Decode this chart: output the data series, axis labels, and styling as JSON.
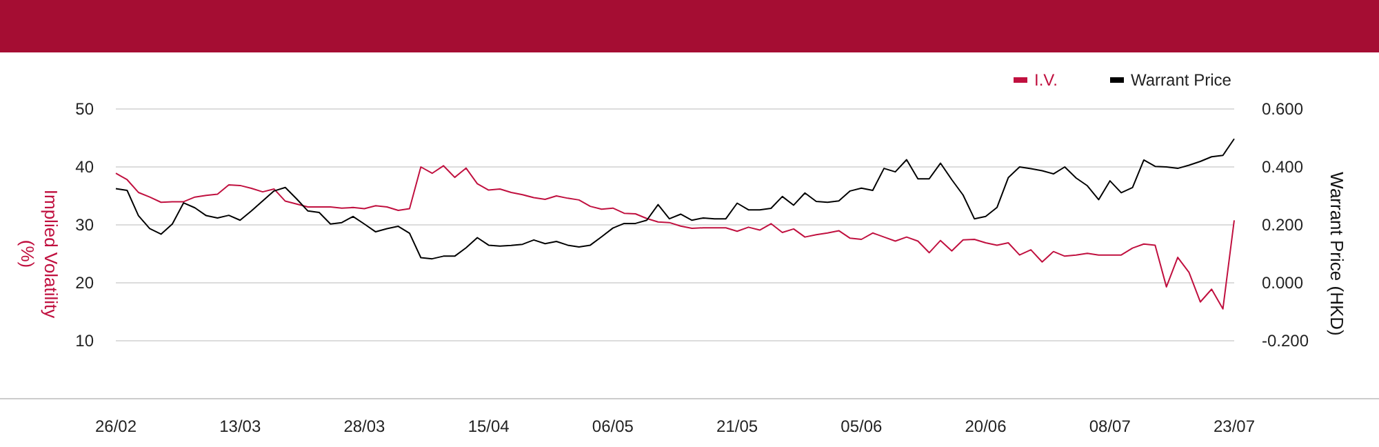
{
  "chart_data": {
    "type": "line",
    "xlabel": null,
    "ylabel": "Implied Volatility (%)",
    "y2label": "Warrant Price (HKD)",
    "categories": [
      "26/02",
      null,
      null,
      null,
      null,
      null,
      null,
      null,
      null,
      null,
      null,
      "13/03",
      null,
      null,
      null,
      null,
      null,
      null,
      null,
      null,
      null,
      null,
      "28/03",
      null,
      null,
      null,
      null,
      null,
      null,
      null,
      null,
      null,
      null,
      "15/04",
      null,
      null,
      null,
      null,
      null,
      null,
      null,
      null,
      null,
      null,
      "06/05",
      null,
      null,
      null,
      null,
      null,
      null,
      null,
      null,
      null,
      null,
      "21/05",
      null,
      null,
      null,
      null,
      null,
      null,
      null,
      null,
      null,
      null,
      "05/06",
      null,
      null,
      null,
      null,
      null,
      null,
      null,
      null,
      null,
      null,
      "20/06",
      null,
      null,
      null,
      null,
      null,
      null,
      null,
      null,
      null,
      null,
      "08/07",
      null,
      null,
      null,
      null,
      null,
      null,
      null,
      null,
      null,
      null,
      "23/07"
    ],
    "ylim": [
      0,
      50
    ],
    "yticks": [
      10,
      20,
      30,
      40,
      50
    ],
    "y2lim": [
      -0.4,
      0.6
    ],
    "y2ticks": [
      {
        "value": -0.2,
        "label": "-0.200"
      },
      {
        "value": 0,
        "label": "0.000"
      },
      {
        "value": 0.2,
        "label": "0.200"
      },
      {
        "value": 0.4,
        "label": "0.400"
      },
      {
        "value": 0.6,
        "label": "0.600"
      }
    ],
    "grid": "y",
    "legend": "top right",
    "marker": "none",
    "line_style": "solid",
    "series": [
      {
        "name": "I.V.",
        "color": "#c0103f",
        "values": [
          38.9,
          37.8,
          35.6,
          34.8,
          33.9,
          34.0,
          34.0,
          34.8,
          35.1,
          35.3,
          36.9,
          36.8,
          36.3,
          35.7,
          36.2,
          34.1,
          33.6,
          33.1,
          33.1,
          33.1,
          32.9,
          33.0,
          32.8,
          33.3,
          33.1,
          32.5,
          32.8,
          40.0,
          38.9,
          40.2,
          38.2,
          39.8,
          37.1,
          36.0,
          36.2,
          35.6,
          35.2,
          34.7,
          34.4,
          35.0,
          34.6,
          34.3,
          33.2,
          32.7,
          32.9,
          32.0,
          31.9,
          31.1,
          30.5,
          30.4,
          29.8,
          29.4,
          29.5,
          29.5,
          29.5,
          28.9,
          29.6,
          29.1,
          30.2,
          28.7,
          29.3,
          27.9,
          28.3,
          28.6,
          29.0,
          27.7,
          27.5,
          28.6,
          27.9,
          27.2,
          27.9,
          27.2,
          25.2,
          27.3,
          25.5,
          27.4,
          27.5,
          26.9,
          26.5,
          26.9,
          24.8,
          25.7,
          23.6,
          25.4,
          24.6,
          24.8,
          25.1,
          24.8,
          24.8,
          24.8,
          26.0,
          26.7,
          26.5,
          19.3,
          24.4,
          21.8,
          16.7,
          18.9,
          15.5,
          30.8
        ]
      },
      {
        "name": "Warrant Price",
        "color": "#000000",
        "axis": "y2",
        "values": [
          0.325,
          0.319,
          0.232,
          0.187,
          0.168,
          0.203,
          0.276,
          0.259,
          0.232,
          0.224,
          0.233,
          0.216,
          0.248,
          0.283,
          0.317,
          0.329,
          0.29,
          0.248,
          0.243,
          0.203,
          0.208,
          0.229,
          0.203,
          0.176,
          0.187,
          0.195,
          0.171,
          0.087,
          0.083,
          0.092,
          0.092,
          0.121,
          0.156,
          0.13,
          0.127,
          0.129,
          0.133,
          0.148,
          0.135,
          0.143,
          0.13,
          0.124,
          0.13,
          0.159,
          0.189,
          0.205,
          0.205,
          0.216,
          0.27,
          0.221,
          0.237,
          0.216,
          0.224,
          0.221,
          0.221,
          0.275,
          0.252,
          0.252,
          0.257,
          0.298,
          0.268,
          0.31,
          0.281,
          0.278,
          0.283,
          0.317,
          0.327,
          0.319,
          0.395,
          0.383,
          0.425,
          0.359,
          0.359,
          0.413,
          0.356,
          0.303,
          0.221,
          0.229,
          0.26,
          0.363,
          0.4,
          0.394,
          0.387,
          0.376,
          0.4,
          0.362,
          0.335,
          0.287,
          0.352,
          0.311,
          0.329,
          0.424,
          0.402,
          0.4,
          0.395,
          0.406,
          0.419,
          0.435,
          0.44,
          0.497
        ]
      }
    ]
  }
}
